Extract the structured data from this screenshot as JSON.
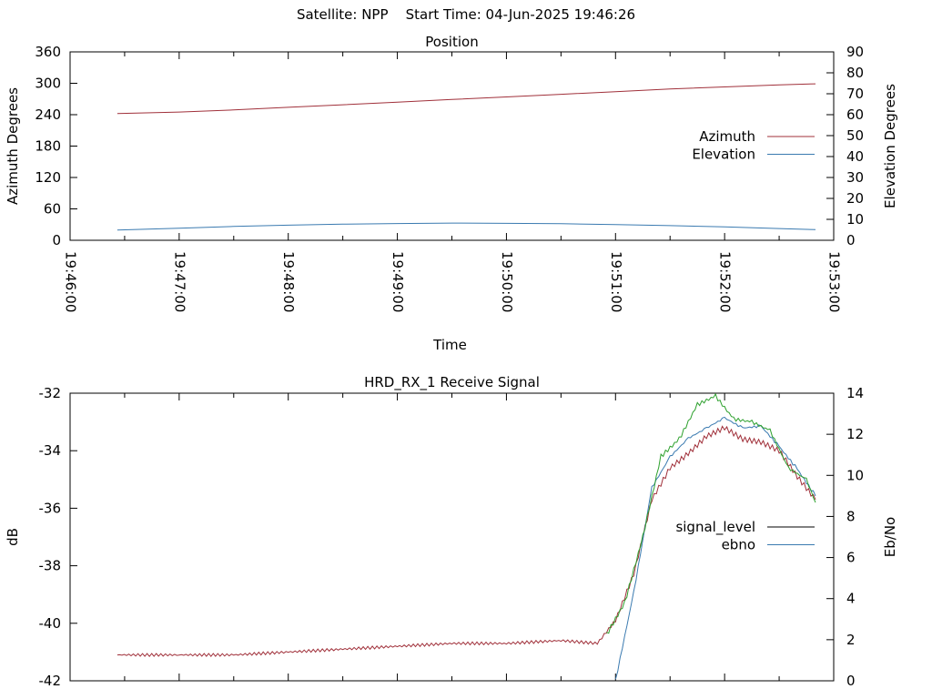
{
  "header": {
    "satellite_label": "Satellite: NPP",
    "start_label": "Start Time: 04-Jun-2025 19:46:26"
  },
  "chart_data": [
    {
      "type": "line",
      "title": "Position",
      "xlabel": "Time",
      "ylabel": "Azimuth Degrees",
      "y2label": "Elevation Degrees",
      "x_ticks": [
        "19:46:00",
        "19:47:00",
        "19:48:00",
        "19:49:00",
        "19:50:00",
        "19:51:00",
        "19:52:00",
        "19:53:00"
      ],
      "xlim": [
        "19:46:00",
        "19:53:00"
      ],
      "ylim": [
        0,
        360
      ],
      "y_ticks": [
        0,
        60,
        120,
        180,
        240,
        300,
        360
      ],
      "y2lim": [
        0,
        90
      ],
      "y2_ticks": [
        0,
        10,
        20,
        30,
        40,
        50,
        60,
        70,
        80,
        90
      ],
      "grid": false,
      "legend": "right",
      "x": [
        "19:46:26",
        "19:47:00",
        "19:47:30",
        "19:48:00",
        "19:48:30",
        "19:49:00",
        "19:49:30",
        "19:50:00",
        "19:50:30",
        "19:51:00",
        "19:51:30",
        "19:52:00",
        "19:52:30",
        "19:52:50"
      ],
      "series": [
        {
          "name": "Azimuth",
          "axis": "left",
          "color": "#a0303a",
          "values": [
            242,
            245,
            249,
            254,
            259,
            264,
            269,
            274,
            279,
            284,
            289,
            293,
            297,
            299
          ]
        },
        {
          "name": "Elevation",
          "axis": "right",
          "color": "#3a7ab0",
          "values": [
            4.9,
            5.8,
            6.6,
            7.2,
            7.7,
            8.0,
            8.2,
            8.1,
            7.9,
            7.5,
            7.0,
            6.4,
            5.6,
            5.1
          ]
        }
      ]
    },
    {
      "type": "line",
      "title": "HRD_RX_1 Receive Signal",
      "xlabel": "",
      "ylabel": "dB",
      "y2label": "Eb/No",
      "xlim": [
        "19:46:00",
        "19:53:00"
      ],
      "ylim": [
        -42,
        -32
      ],
      "y_ticks": [
        -42,
        -40,
        -38,
        -36,
        -34,
        -32
      ],
      "y2lim": [
        0,
        14
      ],
      "y2_ticks": [
        0,
        2,
        4,
        6,
        8,
        10,
        12,
        14
      ],
      "grid": false,
      "legend": "right",
      "series": [
        {
          "name": "signal_level",
          "axis": "left",
          "color": "#a0303a",
          "x": [
            "19:46:26",
            "19:47:00",
            "19:47:30",
            "19:48:00",
            "19:48:30",
            "19:49:00",
            "19:49:30",
            "19:50:00",
            "19:50:30",
            "19:50:50",
            "19:51:00",
            "19:51:10",
            "19:51:20",
            "19:51:30",
            "19:51:40",
            "19:51:50",
            "19:52:00",
            "19:52:10",
            "19:52:20",
            "19:52:30",
            "19:52:40",
            "19:52:50"
          ],
          "values": [
            -41.1,
            -41.1,
            -41.1,
            -41.0,
            -40.9,
            -40.8,
            -40.7,
            -40.7,
            -40.6,
            -40.7,
            -39.9,
            -38.3,
            -35.7,
            -34.6,
            -34.1,
            -33.5,
            -33.2,
            -33.6,
            -33.7,
            -34.0,
            -34.9,
            -35.7
          ]
        },
        {
          "name": "ebno",
          "axis": "right",
          "color": "#3a7ab0",
          "x": [
            "19:51:00",
            "19:51:10",
            "19:51:20",
            "19:51:30",
            "19:51:40",
            "19:51:50",
            "19:52:00",
            "19:52:10",
            "19:52:20",
            "19:52:30",
            "19:52:40",
            "19:52:50"
          ],
          "values": [
            0.0,
            4.3,
            9.4,
            10.9,
            11.8,
            12.3,
            12.8,
            12.3,
            12.4,
            11.4,
            10.3,
            9.0
          ]
        },
        {
          "name": "",
          "axis": "left",
          "color": "#2ca02c",
          "x": [
            "19:50:55",
            "19:51:05",
            "19:51:15",
            "19:51:25",
            "19:51:35",
            "19:51:45",
            "19:51:55",
            "19:52:05",
            "19:52:15",
            "19:52:25",
            "19:52:35",
            "19:52:45",
            "19:52:50"
          ],
          "values": [
            -40.4,
            -39.3,
            -37.0,
            -34.2,
            -33.6,
            -32.4,
            -32.1,
            -32.9,
            -33.0,
            -33.3,
            -34.6,
            -35.0,
            -35.8
          ]
        }
      ]
    }
  ]
}
